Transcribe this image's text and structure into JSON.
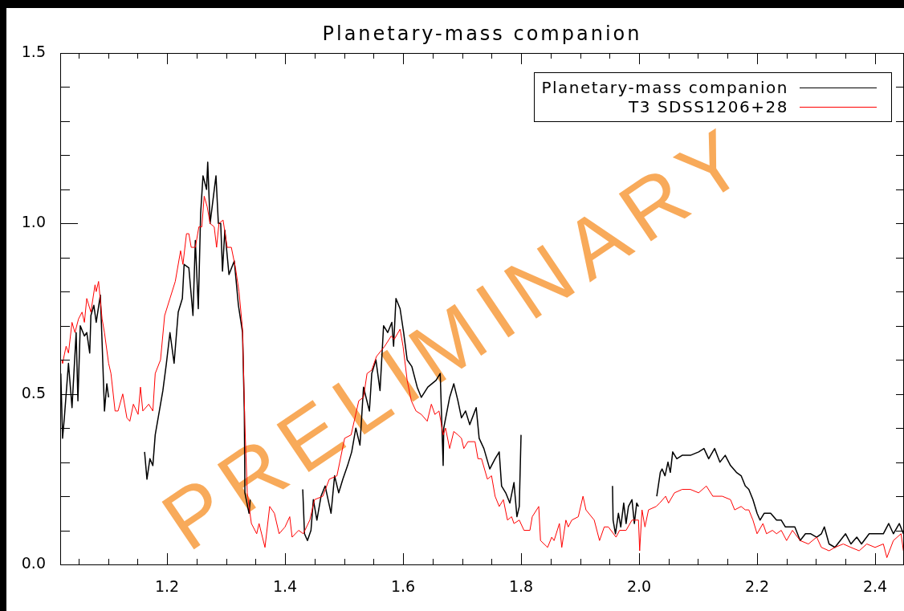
{
  "chart_data": {
    "type": "line",
    "title": "Planetary-mass companion",
    "legend": "top right",
    "marker": "none",
    "line_style": "solid",
    "xlim": [
      1.019,
      2.449
    ],
    "xticks": [
      {
        "value": 1.05,
        "label": null
      },
      {
        "value": 1.1,
        "label": null
      },
      {
        "value": 1.15,
        "label": null
      },
      1.2,
      {
        "value": 1.25,
        "label": null
      },
      {
        "value": 1.3,
        "label": null
      },
      {
        "value": 1.35,
        "label": null
      },
      1.4,
      {
        "value": 1.45,
        "label": null
      },
      {
        "value": 1.5,
        "label": null
      },
      {
        "value": 1.55,
        "label": null
      },
      1.6,
      {
        "value": 1.65,
        "label": null
      },
      {
        "value": 1.7,
        "label": null
      },
      {
        "value": 1.75,
        "label": null
      },
      1.8,
      {
        "value": 1.85,
        "label": null
      },
      {
        "value": 1.9,
        "label": null
      },
      {
        "value": 1.95,
        "label": null
      },
      {
        "value": 2.0,
        "label": "2.0"
      },
      {
        "value": 2.05,
        "label": null
      },
      {
        "value": 2.1,
        "label": null
      },
      {
        "value": 2.15,
        "label": null
      },
      2.2,
      {
        "value": 2.25,
        "label": null
      },
      {
        "value": 2.3,
        "label": null
      },
      {
        "value": 2.35,
        "label": null
      },
      2.4
    ],
    "ylim": [
      0,
      1.5
    ],
    "yticks": [
      {
        "value": 0,
        "label": "0.0"
      },
      {
        "value": 0.1,
        "label": null
      },
      {
        "value": 0.2,
        "label": null
      },
      {
        "value": 0.3,
        "label": null
      },
      {
        "value": 0.4,
        "label": null
      },
      {
        "value": 0.5,
        "label": "0.5"
      },
      {
        "value": 0.6,
        "label": null
      },
      {
        "value": 0.7,
        "label": null
      },
      {
        "value": 0.8,
        "label": null
      },
      {
        "value": 0.9,
        "label": null
      },
      {
        "value": 1.0,
        "label": "1.0"
      },
      {
        "value": 1.1,
        "label": null
      },
      {
        "value": 1.2,
        "label": null
      },
      {
        "value": 1.3,
        "label": null
      },
      {
        "value": 1.4,
        "label": null
      },
      {
        "value": 1.5,
        "label": "1.5"
      }
    ],
    "annotations": [
      "PRELIMINARY"
    ],
    "series": [
      {
        "name": "Planetary-mass companion",
        "color": "#000000",
        "x": [
          1.02,
          1.023,
          1.026,
          1.033,
          1.039,
          1.046,
          1.049,
          1.053,
          1.06,
          1.064,
          1.069,
          1.071,
          1.076,
          1.08,
          1.087,
          1.09,
          1.094,
          1.098,
          1.101,
          1.13,
          1.162,
          1.166,
          1.171,
          1.176,
          1.18,
          1.185,
          1.193,
          1.199,
          1.205,
          1.212,
          1.219,
          1.226,
          1.229,
          1.237,
          1.244,
          1.248,
          1.253,
          1.257,
          1.261,
          1.267,
          1.269,
          1.273,
          1.278,
          1.283,
          1.287,
          1.291,
          1.294,
          1.298,
          1.305,
          1.314,
          1.321,
          1.328,
          1.331,
          1.332,
          1.339,
          1.341,
          1.38,
          1.43,
          1.433,
          1.438,
          1.444,
          1.448,
          1.454,
          1.461,
          1.468,
          1.478,
          1.484,
          1.491,
          1.498,
          1.506,
          1.513,
          1.52,
          1.527,
          1.533,
          1.543,
          1.547,
          1.554,
          1.561,
          1.567,
          1.574,
          1.581,
          1.584,
          1.588,
          1.595,
          1.601,
          1.607,
          1.615,
          1.624,
          1.631,
          1.642,
          1.656,
          1.663,
          1.668,
          1.669,
          1.679,
          1.686,
          1.693,
          1.699,
          1.706,
          1.713,
          1.724,
          1.729,
          1.737,
          1.747,
          1.756,
          1.763,
          1.767,
          1.774,
          1.781,
          1.788,
          1.793,
          1.797,
          1.8,
          1.88,
          1.955,
          1.956,
          1.96,
          1.965,
          1.969,
          1.974,
          1.978,
          1.982,
          1.988,
          1.992,
          1.996,
          1.999,
          2.015,
          2.03,
          2.036,
          2.039,
          2.044,
          2.049,
          2.053,
          2.057,
          2.064,
          2.073,
          2.087,
          2.101,
          2.11,
          2.118,
          2.128,
          2.137,
          2.146,
          2.155,
          2.165,
          2.173,
          2.18,
          2.186,
          2.193,
          2.2,
          2.205,
          2.212,
          2.223,
          2.233,
          2.241,
          2.248,
          2.254,
          2.264,
          2.273,
          2.282,
          2.291,
          2.301,
          2.309,
          2.314,
          2.322,
          2.332,
          2.341,
          2.35,
          2.359,
          2.369,
          2.377,
          2.39,
          2.4,
          2.414,
          2.423,
          2.431,
          2.441,
          2.448
        ],
        "values": [
          0.56,
          0.37,
          0.43,
          0.59,
          0.46,
          0.68,
          0.48,
          0.7,
          0.67,
          0.68,
          0.62,
          0.73,
          0.76,
          0.71,
          0.79,
          0.65,
          0.45,
          0.53,
          0.49,
          null,
          0.33,
          0.25,
          0.31,
          0.29,
          0.38,
          0.43,
          0.51,
          0.59,
          0.68,
          0.59,
          0.74,
          0.78,
          0.88,
          0.87,
          0.73,
          0.95,
          0.75,
          1.03,
          1.14,
          1.1,
          1.18,
          1.0,
          1.07,
          1.14,
          1.0,
          1.0,
          0.86,
          0.98,
          0.85,
          0.89,
          0.76,
          0.68,
          0.45,
          0.21,
          0.15,
          0.19,
          null,
          0.22,
          0.09,
          0.07,
          0.1,
          0.19,
          0.13,
          0.2,
          0.23,
          0.15,
          0.26,
          0.21,
          0.25,
          0.29,
          0.33,
          0.4,
          0.35,
          0.52,
          0.45,
          0.56,
          0.6,
          0.51,
          0.7,
          0.68,
          0.71,
          0.64,
          0.78,
          0.75,
          0.68,
          0.6,
          0.58,
          0.52,
          0.49,
          0.52,
          0.54,
          0.56,
          0.29,
          0.4,
          0.49,
          0.53,
          0.48,
          0.43,
          0.45,
          0.41,
          0.46,
          0.37,
          0.34,
          0.28,
          0.31,
          0.33,
          0.23,
          0.21,
          0.18,
          0.24,
          0.14,
          0.17,
          0.38,
          null,
          0.23,
          0.13,
          0.09,
          0.15,
          0.11,
          0.18,
          0.12,
          0.17,
          0.19,
          0.12,
          0.18,
          0.17,
          null,
          0.2,
          0.27,
          0.28,
          0.26,
          0.3,
          0.27,
          0.33,
          0.31,
          0.32,
          0.32,
          0.33,
          0.34,
          0.31,
          0.34,
          0.3,
          0.32,
          0.29,
          0.27,
          0.26,
          0.23,
          0.22,
          0.19,
          0.15,
          0.13,
          0.15,
          0.15,
          0.13,
          0.13,
          0.11,
          0.11,
          0.11,
          0.07,
          0.09,
          0.09,
          0.08,
          0.09,
          0.11,
          0.06,
          0.05,
          0.07,
          0.09,
          0.06,
          0.08,
          0.06,
          0.09,
          0.09,
          0.09,
          0.12,
          0.09,
          0.12,
          0.09
        ]
      },
      {
        "name": "T3 SDSS1206+28",
        "color": "#ff0000",
        "x": [
          1.022,
          1.023,
          1.029,
          1.033,
          1.039,
          1.044,
          1.05,
          1.056,
          1.06,
          1.064,
          1.071,
          1.078,
          1.08,
          1.084,
          1.09,
          1.094,
          1.101,
          1.105,
          1.112,
          1.117,
          1.125,
          1.132,
          1.137,
          1.143,
          1.151,
          1.155,
          1.159,
          1.169,
          1.176,
          1.18,
          1.189,
          1.196,
          1.205,
          1.214,
          1.223,
          1.227,
          1.233,
          1.237,
          1.241,
          1.248,
          1.254,
          1.259,
          1.263,
          1.268,
          1.273,
          1.28,
          1.284,
          1.288,
          1.295,
          1.302,
          1.309,
          1.316,
          1.322,
          1.328,
          1.332,
          1.336,
          1.343,
          1.352,
          1.356,
          1.366,
          1.374,
          1.382,
          1.39,
          1.4,
          1.408,
          1.412,
          1.423,
          1.431,
          1.442,
          1.45,
          1.464,
          1.475,
          1.488,
          1.501,
          1.512,
          1.525,
          1.533,
          1.539,
          1.547,
          1.555,
          1.569,
          1.58,
          1.585,
          1.595,
          1.6,
          1.607,
          1.614,
          1.622,
          1.631,
          1.641,
          1.648,
          1.654,
          1.661,
          1.668,
          1.672,
          1.679,
          1.686,
          1.693,
          1.699,
          1.703,
          1.71,
          1.722,
          1.727,
          1.733,
          1.743,
          1.75,
          1.756,
          1.763,
          1.77,
          1.777,
          1.784,
          1.788,
          1.797,
          1.805,
          1.815,
          1.819,
          1.83,
          1.833,
          1.845,
          1.852,
          1.856,
          1.865,
          1.869,
          1.876,
          1.88,
          1.886,
          1.897,
          1.905,
          1.91,
          1.924,
          1.933,
          1.941,
          1.948,
          1.961,
          1.967,
          1.978,
          1.988,
          1.999,
          2.001,
          2.005,
          2.01,
          2.016,
          2.029,
          2.035,
          2.045,
          2.05,
          2.06,
          2.073,
          2.087,
          2.101,
          2.114,
          2.125,
          2.141,
          2.155,
          2.162,
          2.173,
          2.18,
          2.186,
          2.193,
          2.2,
          2.21,
          2.216,
          2.226,
          2.233,
          2.241,
          2.25,
          2.26,
          2.273,
          2.287,
          2.301,
          2.309,
          2.322,
          2.332,
          2.346,
          2.359,
          2.373,
          2.386,
          2.4,
          2.414,
          2.42,
          2.431,
          2.444,
          2.448
        ],
        "values": [
          0.6,
          0.59,
          0.64,
          0.62,
          0.71,
          0.68,
          0.72,
          0.74,
          0.71,
          0.78,
          0.74,
          0.82,
          0.8,
          0.83,
          0.72,
          0.68,
          0.59,
          0.56,
          0.45,
          0.45,
          0.5,
          0.43,
          0.42,
          0.47,
          0.44,
          0.52,
          0.45,
          0.47,
          0.45,
          0.56,
          0.6,
          0.73,
          0.78,
          0.83,
          0.92,
          0.88,
          0.97,
          0.97,
          0.93,
          0.93,
          0.99,
          0.99,
          1.08,
          1.05,
          1.0,
          0.99,
          0.93,
          1.0,
          1.01,
          0.93,
          0.93,
          0.87,
          0.8,
          0.69,
          0.41,
          0.21,
          0.12,
          0.09,
          0.12,
          0.05,
          0.17,
          0.15,
          0.09,
          0.11,
          0.14,
          0.08,
          0.1,
          0.09,
          0.13,
          0.19,
          0.2,
          0.25,
          0.26,
          0.37,
          0.38,
          0.48,
          0.49,
          0.56,
          0.57,
          0.61,
          0.64,
          0.67,
          0.66,
          0.69,
          0.64,
          0.54,
          0.48,
          0.45,
          0.44,
          0.42,
          0.47,
          0.44,
          0.45,
          0.38,
          0.4,
          0.34,
          0.39,
          0.38,
          0.37,
          0.34,
          0.36,
          0.36,
          0.31,
          0.31,
          0.25,
          0.26,
          0.2,
          0.17,
          0.19,
          0.13,
          0.14,
          0.12,
          0.13,
          0.1,
          0.1,
          0.14,
          0.17,
          0.07,
          0.05,
          0.08,
          0.07,
          0.12,
          0.05,
          0.13,
          0.11,
          0.13,
          0.14,
          0.2,
          0.16,
          0.13,
          0.07,
          0.11,
          0.11,
          0.08,
          0.1,
          0.1,
          0.13,
          0.13,
          0.04,
          0.16,
          0.11,
          0.16,
          0.17,
          0.18,
          0.2,
          0.18,
          0.21,
          0.22,
          0.22,
          0.21,
          0.23,
          0.2,
          0.2,
          0.19,
          0.16,
          0.17,
          0.16,
          0.16,
          0.13,
          0.09,
          0.12,
          0.09,
          0.1,
          0.09,
          0.1,
          0.07,
          0.1,
          0.07,
          0.06,
          0.08,
          0.05,
          0.04,
          0.05,
          0.06,
          0.05,
          0.04,
          0.06,
          0.05,
          0.06,
          0.02,
          0.07,
          0.09,
          0.04
        ]
      }
    ]
  }
}
